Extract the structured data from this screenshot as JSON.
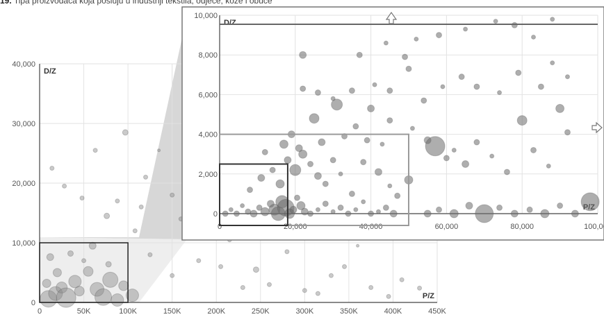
{
  "caption": {
    "label": "19.",
    "text": "Tipa proizvođača koja posluju u industriji tekstila, odjeće, kože i obuće"
  },
  "chart_data": [
    {
      "id": "overview",
      "type": "scatter",
      "xlabel": "P/Z",
      "ylabel": "D/Z",
      "xlim": [
        0,
        450000
      ],
      "ylim": [
        0,
        40000
      ],
      "x_ticks": [
        "0",
        "50K",
        "100K",
        "150K",
        "200K",
        "250K",
        "300K",
        "350K",
        "400K",
        "450K"
      ],
      "x_tick_values": [
        0,
        50000,
        100000,
        150000,
        200000,
        250000,
        300000,
        350000,
        400000,
        450000
      ],
      "y_ticks": [
        "0",
        "10,000",
        "20,000",
        "30,000",
        "40,000"
      ],
      "y_tick_values": [
        0,
        10000,
        20000,
        30000,
        40000
      ],
      "grid": true,
      "zoom_box": {
        "x": [
          0,
          100000
        ],
        "y": [
          0,
          10000
        ]
      },
      "points": [
        [
          10000,
          600,
          12
        ],
        [
          18000,
          1500,
          10
        ],
        [
          25000,
          2500,
          8
        ],
        [
          30000,
          800,
          14
        ],
        [
          40000,
          3500,
          9
        ],
        [
          55000,
          5200,
          7
        ],
        [
          65000,
          2200,
          10
        ],
        [
          72000,
          900,
          12
        ],
        [
          80000,
          3800,
          11
        ],
        [
          88000,
          400,
          9
        ],
        [
          95000,
          2800,
          7
        ],
        [
          105000,
          1200,
          9
        ],
        [
          12000,
          7600,
          5
        ],
        [
          35000,
          8200,
          4
        ],
        [
          60000,
          9500,
          5
        ],
        [
          78000,
          6400,
          4
        ],
        [
          50000,
          7000,
          3
        ],
        [
          20000,
          5000,
          6
        ],
        [
          45000,
          1900,
          7
        ],
        [
          8000,
          3200,
          6
        ],
        [
          14000,
          22500,
          3
        ],
        [
          28000,
          19500,
          3
        ],
        [
          48000,
          17500,
          3
        ],
        [
          63000,
          25500,
          3
        ],
        [
          76000,
          14500,
          4
        ],
        [
          88000,
          17000,
          3
        ],
        [
          97000,
          28500,
          4
        ],
        [
          108000,
          12000,
          3
        ],
        [
          120000,
          21000,
          3
        ],
        [
          135000,
          25500,
          2
        ],
        [
          150000,
          18000,
          3
        ],
        [
          160000,
          14000,
          3
        ],
        [
          175000,
          11500,
          3
        ],
        [
          180000,
          7000,
          3
        ],
        [
          205000,
          6000,
          3
        ],
        [
          215000,
          10500,
          3
        ],
        [
          230000,
          2500,
          3
        ],
        [
          245000,
          5500,
          4
        ],
        [
          260000,
          3000,
          3
        ],
        [
          280000,
          8500,
          3
        ],
        [
          300000,
          2000,
          3
        ],
        [
          315000,
          1500,
          3
        ],
        [
          330000,
          4500,
          3
        ],
        [
          345000,
          6000,
          3
        ],
        [
          360000,
          9500,
          2
        ],
        [
          375000,
          2500,
          3
        ],
        [
          395000,
          1000,
          3
        ],
        [
          410000,
          3800,
          3
        ],
        [
          430000,
          2400,
          3
        ],
        [
          150000,
          4500,
          3
        ],
        [
          125000,
          8000,
          3
        ],
        [
          190000,
          21000,
          6
        ],
        [
          240000,
          19000,
          4
        ],
        [
          210000,
          24500,
          3
        ],
        [
          115000,
          16000,
          3
        ]
      ]
    },
    {
      "id": "zoom",
      "type": "scatter",
      "xlabel": "P/Z",
      "ylabel": "D/Z",
      "xlim": [
        0,
        100000
      ],
      "ylim": [
        0,
        10000
      ],
      "x_ticks": [
        "0",
        "20,000",
        "40,000",
        "60,000",
        "80,000",
        "100,000"
      ],
      "x_tick_values": [
        0,
        20000,
        40000,
        60000,
        80000,
        100000
      ],
      "y_ticks": [
        "0",
        "2,000",
        "4,000",
        "6,000",
        "8,000",
        "10,000"
      ],
      "y_tick_values": [
        0,
        2000,
        4000,
        6000,
        8000,
        10000
      ],
      "grid": true,
      "zoom_box_outer": {
        "x": [
          0,
          50000
        ],
        "y": [
          0,
          4000
        ]
      },
      "zoom_box_inner": {
        "x": [
          0,
          18000
        ],
        "y": [
          0,
          2500
        ]
      },
      "points": [
        [
          1500,
          0,
          4
        ],
        [
          3000,
          200,
          3
        ],
        [
          4500,
          0,
          4
        ],
        [
          6000,
          400,
          3
        ],
        [
          7500,
          100,
          4
        ],
        [
          9000,
          0,
          5
        ],
        [
          10500,
          300,
          4
        ],
        [
          12000,
          100,
          6
        ],
        [
          13500,
          500,
          5
        ],
        [
          14500,
          200,
          8
        ],
        [
          15500,
          0,
          10
        ],
        [
          16500,
          600,
          9
        ],
        [
          17500,
          300,
          12
        ],
        [
          18500,
          0,
          7
        ],
        [
          19500,
          200,
          5
        ],
        [
          20500,
          800,
          4
        ],
        [
          21500,
          400,
          6
        ],
        [
          22500,
          100,
          5
        ],
        [
          24000,
          0,
          4
        ],
        [
          26000,
          200,
          3
        ],
        [
          28000,
          500,
          4
        ],
        [
          30000,
          100,
          3
        ],
        [
          32000,
          300,
          4
        ],
        [
          34000,
          0,
          4
        ],
        [
          36000,
          200,
          3
        ],
        [
          38000,
          600,
          3
        ],
        [
          40000,
          0,
          4
        ],
        [
          42000,
          100,
          3
        ],
        [
          44000,
          300,
          4
        ],
        [
          46000,
          0,
          5
        ],
        [
          8000,
          1200,
          4
        ],
        [
          11000,
          1800,
          5
        ],
        [
          14000,
          2200,
          4
        ],
        [
          16000,
          1500,
          6
        ],
        [
          18000,
          2700,
          5
        ],
        [
          20000,
          2200,
          8
        ],
        [
          22000,
          3000,
          6
        ],
        [
          24000,
          2500,
          4
        ],
        [
          26000,
          1900,
          5
        ],
        [
          28000,
          1500,
          4
        ],
        [
          30000,
          2700,
          4
        ],
        [
          32000,
          2000,
          3
        ],
        [
          35000,
          1000,
          4
        ],
        [
          38000,
          2600,
          4
        ],
        [
          42000,
          2100,
          5
        ],
        [
          45000,
          1400,
          3
        ],
        [
          47000,
          900,
          4
        ],
        [
          50000,
          1700,
          6
        ],
        [
          17000,
          3500,
          6
        ],
        [
          21000,
          3300,
          5
        ],
        [
          27000,
          3600,
          5
        ],
        [
          33000,
          3900,
          4
        ],
        [
          39000,
          3700,
          4
        ],
        [
          43000,
          3500,
          3
        ],
        [
          12000,
          3100,
          4
        ],
        [
          19000,
          4000,
          5
        ],
        [
          25000,
          4800,
          7
        ],
        [
          31000,
          5500,
          8
        ],
        [
          36000,
          4400,
          4
        ],
        [
          40000,
          5300,
          5
        ],
        [
          45000,
          4700,
          4
        ],
        [
          51000,
          4300,
          3
        ],
        [
          55000,
          3700,
          5
        ],
        [
          57000,
          3400,
          14
        ],
        [
          60000,
          2800,
          4
        ],
        [
          62000,
          3200,
          3
        ],
        [
          65000,
          2500,
          5
        ],
        [
          68000,
          3600,
          4
        ],
        [
          72000,
          2900,
          3
        ],
        [
          76000,
          2100,
          4
        ],
        [
          80000,
          4700,
          7
        ],
        [
          83000,
          3200,
          4
        ],
        [
          87000,
          2400,
          3
        ],
        [
          90000,
          5300,
          6
        ],
        [
          92000,
          4100,
          4
        ],
        [
          98000,
          600,
          13
        ],
        [
          55000,
          0,
          5
        ],
        [
          58000,
          200,
          4
        ],
        [
          62000,
          0,
          6
        ],
        [
          66000,
          400,
          5
        ],
        [
          70000,
          0,
          13
        ],
        [
          74000,
          300,
          4
        ],
        [
          78000,
          0,
          5
        ],
        [
          82000,
          200,
          4
        ],
        [
          86000,
          0,
          6
        ],
        [
          90000,
          400,
          4
        ],
        [
          94000,
          0,
          5
        ],
        [
          22000,
          6300,
          4
        ],
        [
          26000,
          6100,
          4
        ],
        [
          30000,
          5800,
          3
        ],
        [
          35000,
          6200,
          4
        ],
        [
          41000,
          6500,
          3
        ],
        [
          45000,
          6200,
          4
        ],
        [
          50000,
          7300,
          4
        ],
        [
          54000,
          5700,
          4
        ],
        [
          59000,
          6400,
          3
        ],
        [
          64000,
          6900,
          4
        ],
        [
          68000,
          6400,
          4
        ],
        [
          74000,
          6100,
          3
        ],
        [
          79000,
          7100,
          4
        ],
        [
          85000,
          6400,
          4
        ],
        [
          88000,
          7600,
          3
        ],
        [
          92000,
          6900,
          3
        ],
        [
          22000,
          8000,
          5
        ],
        [
          37000,
          8000,
          4
        ],
        [
          44000,
          8600,
          3
        ],
        [
          49000,
          7900,
          4
        ],
        [
          52000,
          8800,
          3
        ],
        [
          58000,
          9000,
          4
        ],
        [
          65000,
          9300,
          3
        ],
        [
          73000,
          9700,
          3
        ],
        [
          78000,
          9500,
          4
        ],
        [
          83000,
          8900,
          3
        ],
        [
          88000,
          9800,
          3
        ]
      ]
    }
  ]
}
